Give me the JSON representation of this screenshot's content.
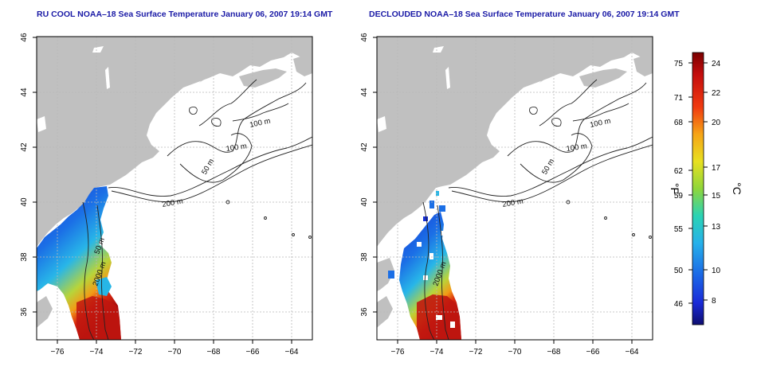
{
  "maps": [
    {
      "title": "RU COOL NOAA–18 Sea Surface Temperature January 06, 2007 19:14 GMT",
      "contour_labels": [
        "100 m",
        "100 m",
        "50 m",
        "200 m",
        "50 m",
        "2000 m"
      ]
    },
    {
      "title": "DECLOUDED NOAA–18 Sea Surface Temperature January 06, 2007 19:14 GMT",
      "contour_labels": [
        "100 m",
        "100 m",
        "50 m",
        "200 m",
        "2000 m"
      ]
    }
  ],
  "axes": {
    "x_ticks": [
      "−76",
      "−74",
      "−72",
      "−70",
      "−68",
      "−66",
      "−64"
    ],
    "y_ticks": [
      "46",
      "44",
      "42",
      "40",
      "38",
      "36"
    ]
  },
  "colorbar": {
    "fahrenheit_label": "°F",
    "celsius_label": "°C",
    "fahrenheit_ticks": [
      "75",
      "71",
      "68",
      "62",
      "59",
      "55",
      "50",
      "46"
    ],
    "celsius_ticks": [
      "24",
      "22",
      "20",
      "17",
      "15",
      "13",
      "10",
      "8"
    ]
  },
  "colors": {
    "land": "#c0c0c0",
    "contour": "#222222",
    "grid": "#b8b8b8",
    "title": "#1a1aa6",
    "sst_warm": "#b01010",
    "sst_mid": "#f6c21a",
    "sst_cool": "#27b6e6",
    "sst_cold": "#1a2fd8"
  }
}
